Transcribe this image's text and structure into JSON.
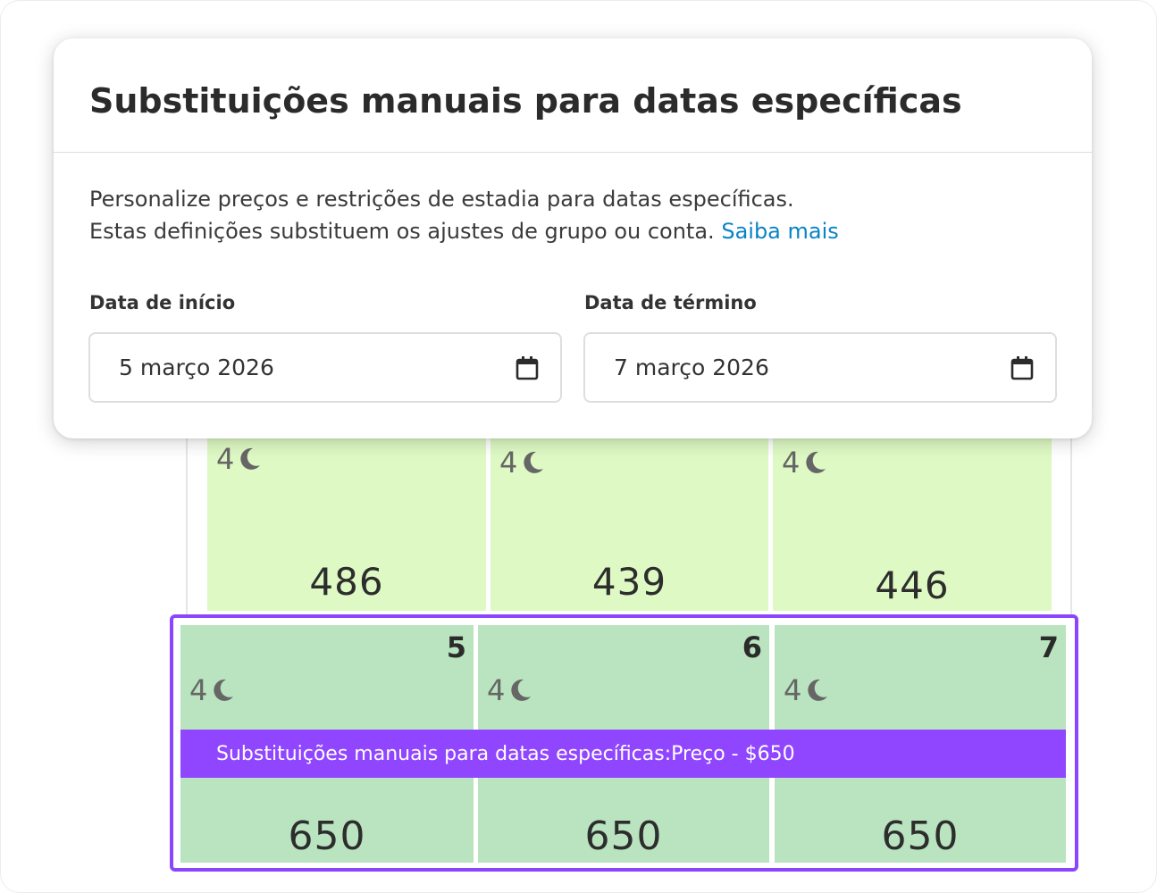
{
  "dialog": {
    "title": "Substituições manuais para datas específicas",
    "description_line1": "Personalize preços e restrições de estadia para datas específicas.",
    "description_line2": "Estas definições substituem os ajustes de grupo ou conta.",
    "learn_more": "Saiba mais",
    "start_label": "Data de início",
    "start_value": "5 março 2026",
    "end_label": "Data de término",
    "end_value": "7 março 2026"
  },
  "calendar": {
    "upper_row": [
      {
        "nights": "4",
        "price": "486"
      },
      {
        "nights": "4",
        "price": "439"
      },
      {
        "nights": "4",
        "price": "446"
      }
    ],
    "selected_row": [
      {
        "day": "5",
        "nights": "4",
        "price": "650"
      },
      {
        "day": "6",
        "nights": "4",
        "price": "650"
      },
      {
        "day": "7",
        "nights": "4",
        "price": "650"
      }
    ],
    "override_banner": "Substituições manuais para datas específicas:Preço - $650"
  },
  "colors": {
    "accent": "#8b45ff",
    "banner": "#9046ff",
    "link": "#0a83c6",
    "cell_light_green": "#def9c4",
    "cell_selected_green": "#b9e4bf"
  },
  "icons": {
    "nights": "moon-icon",
    "date_picker": "calendar-icon"
  }
}
